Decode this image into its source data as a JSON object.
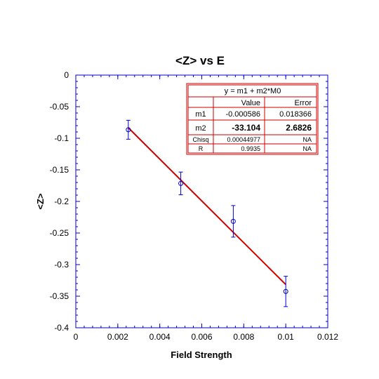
{
  "chart_data": {
    "type": "scatter",
    "title": "<Z> vs E",
    "xlabel": "Field Strength",
    "ylabel": "<Z>",
    "xlim": [
      0,
      0.012
    ],
    "ylim": [
      -0.4,
      0
    ],
    "x_ticks": [
      "0",
      "0.002",
      "0.004",
      "0.006",
      "0.008",
      "0.01",
      "0.012"
    ],
    "y_ticks": [
      "0",
      "-0.05",
      "-0.1",
      "-0.15",
      "-0.2",
      "-0.25",
      "-0.3",
      "-0.35",
      "-0.4"
    ],
    "x_tick_values": [
      0,
      0.002,
      0.004,
      0.006,
      0.008,
      0.01,
      0.012
    ],
    "y_tick_values": [
      0,
      -0.05,
      -0.1,
      -0.15,
      -0.2,
      -0.25,
      -0.3,
      -0.35,
      -0.4
    ],
    "grid": false,
    "points": [
      {
        "x": 0.0025,
        "y": -0.0865,
        "err": 0.015
      },
      {
        "x": 0.005,
        "y": -0.1715,
        "err": 0.018
      },
      {
        "x": 0.0075,
        "y": -0.2315,
        "err": 0.025
      },
      {
        "x": 0.01,
        "y": -0.3425,
        "err": 0.024
      }
    ],
    "fit_line": {
      "x": [
        0.0025,
        0.01
      ],
      "m1": -0.000586,
      "m2": -33.104
    },
    "colors": {
      "points": "#0000cc",
      "fit": "#cc0000",
      "axes": "#0000cc"
    }
  },
  "fit_table": {
    "equation": "y = m1 + m2*M0",
    "col_value": "Value",
    "col_error": "Error",
    "rows": [
      {
        "name": "m1",
        "value": "-0.000586",
        "error": "0.018366"
      },
      {
        "name": "m2",
        "value": "-33.104",
        "error": "2.6826"
      },
      {
        "name": "Chisq",
        "value": "0.00044977",
        "error": "NA"
      },
      {
        "name": "R",
        "value": "0.9935",
        "error": "NA"
      }
    ]
  }
}
